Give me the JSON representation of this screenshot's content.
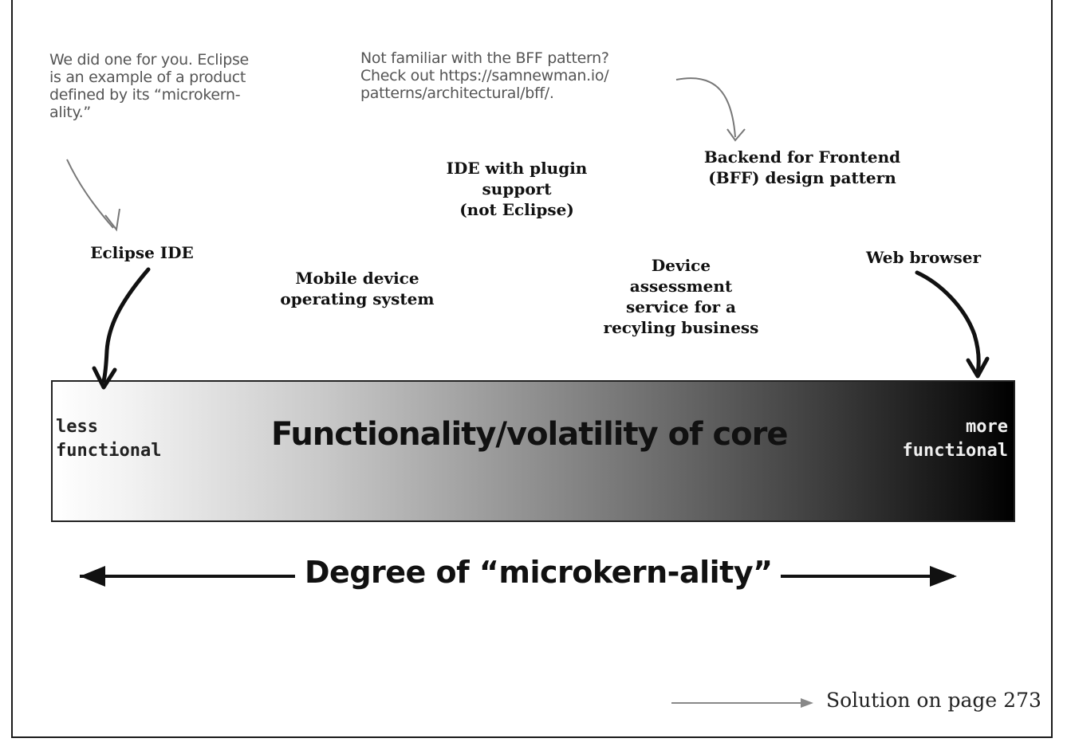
{
  "notes": {
    "eclipse_note": "We did one for you. Eclipse\nis an example of a product\ndefined by its “microkern-\nality.”",
    "bff_note": "Not familiar with the BFF pattern?\nCheck out https://samnewman.io/\npatterns/architectural/bff/."
  },
  "labels": {
    "eclipse_ide": "Eclipse IDE",
    "ide_plugin": "IDE with plugin\nsupport\n(not Eclipse)",
    "bff": "Backend for Frontend\n(BFF) design pattern",
    "mobile_os": "Mobile device\noperating system",
    "device_assessment": "Device\nassessment\nservice for a\nrecyling business",
    "web_browser": "Web browser"
  },
  "bar": {
    "left_text": "less\nfunctional",
    "title": "Functionality/volatility of core",
    "right_text": "more\nfunctional"
  },
  "axis": {
    "title": "Degree of “microkern-ality”"
  },
  "footer": {
    "solution": "Solution on page 273"
  }
}
